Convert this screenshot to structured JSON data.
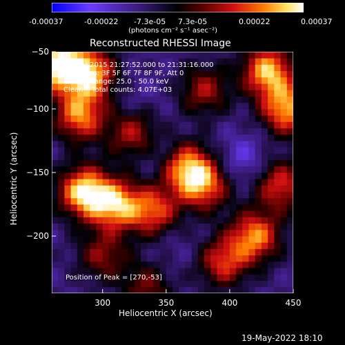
{
  "chart_data": {
    "type": "heatmap",
    "title": "Reconstructed RHESSI Image",
    "xlabel": "Heliocentric X (arcsec)",
    "ylabel": "Heliocentric Y (arcsec)",
    "xlim": [
      260,
      450
    ],
    "ylim": [
      -245,
      -55
    ],
    "x_ticks": [
      300,
      350,
      400,
      450
    ],
    "y_ticks": [
      -50,
      -100,
      -150,
      -200
    ],
    "colorbar": {
      "ticks": [
        "-0.00037",
        "-0.00022",
        "-7.3e-05",
        "7.3e-05",
        "0.00022",
        "0.00037"
      ],
      "range": [
        -0.00037,
        0.00037
      ],
      "unit_label": "(photons cm⁻² s⁻¹ asec⁻²)",
      "colors": [
        "#0000ff",
        "#6a3cff",
        "#3a1a7a",
        "#000000",
        "#5a0000",
        "#d01010",
        "#ff7a00",
        "#ffe060",
        "#ffffff"
      ]
    },
    "annotations": [
      "14-Mar-2015 21:27:52.000 to 21:31:16.000",
      "Detectors: 3F 5F 6F 7F 8F 9F, Att 0",
      "Energy Range: 25.0 - 50.0 keV",
      "Clean    Total counts: 4.07E+03"
    ],
    "peak_label": "Position of Peak = [270,-53]",
    "peak": [
      270,
      -53
    ],
    "hotspots": [
      {
        "x": 265,
        "y": -65,
        "v": 0.00037
      },
      {
        "x": 290,
        "y": -72,
        "v": 0.0003
      },
      {
        "x": 282,
        "y": -105,
        "v": 0.00025
      },
      {
        "x": 325,
        "y": -120,
        "v": 0.00014
      },
      {
        "x": 380,
        "y": -85,
        "v": 0.00012
      },
      {
        "x": 430,
        "y": -70,
        "v": 0.0003
      },
      {
        "x": 445,
        "y": -100,
        "v": 0.00028
      },
      {
        "x": 285,
        "y": -165,
        "v": 0.00033
      },
      {
        "x": 310,
        "y": -175,
        "v": 0.00028
      },
      {
        "x": 340,
        "y": -180,
        "v": 0.0002
      },
      {
        "x": 365,
        "y": -145,
        "v": 0.00025
      },
      {
        "x": 380,
        "y": -160,
        "v": 0.00022
      },
      {
        "x": 440,
        "y": -160,
        "v": 0.00018
      },
      {
        "x": 420,
        "y": -200,
        "v": 0.00025
      },
      {
        "x": 395,
        "y": -220,
        "v": 0.00018
      },
      {
        "x": 300,
        "y": -215,
        "v": 0.0001
      },
      {
        "x": 335,
        "y": -240,
        "v": 8e-05
      }
    ],
    "coldspots": [
      {
        "x": 330,
        "y": -90,
        "v": -0.00015
      },
      {
        "x": 345,
        "y": -135,
        "v": -0.0002
      },
      {
        "x": 410,
        "y": -140,
        "v": -0.00022
      },
      {
        "x": 380,
        "y": -205,
        "v": -0.00012
      },
      {
        "x": 355,
        "y": -210,
        "v": -0.00014
      },
      {
        "x": 300,
        "y": -130,
        "v": -0.0001
      }
    ]
  },
  "footer": {
    "timestamp": "19-May-2022 18:10"
  }
}
